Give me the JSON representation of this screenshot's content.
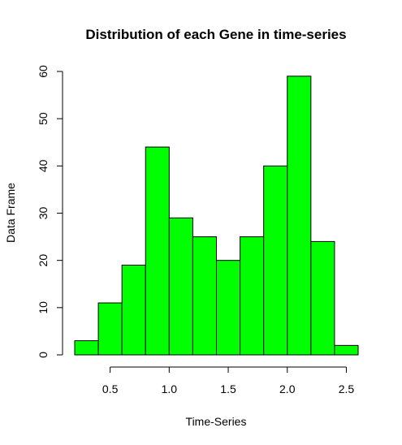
{
  "chart_data": {
    "type": "bar",
    "title": "Distribution of each Gene in time-series",
    "xlabel": "Time-Series",
    "ylabel": "Data Frame",
    "bin_edges": [
      0.2,
      0.4,
      0.6,
      0.8,
      1.0,
      1.2,
      1.4,
      1.6,
      1.8,
      2.0,
      2.2,
      2.4,
      2.6
    ],
    "values": [
      3,
      11,
      19,
      44,
      29,
      25,
      20,
      25,
      40,
      59,
      24,
      2
    ],
    "xlim": [
      0.2,
      2.6
    ],
    "ylim": [
      0,
      60
    ],
    "x_ticks": [
      0.5,
      1.0,
      1.5,
      2.0,
      2.5
    ],
    "x_tick_labels": [
      "0.5",
      "1.0",
      "1.5",
      "2.0",
      "2.5"
    ],
    "y_ticks": [
      0,
      10,
      20,
      30,
      40,
      50,
      60
    ],
    "y_tick_labels": [
      "0",
      "10",
      "20",
      "30",
      "40",
      "50",
      "60"
    ],
    "bar_color": "#00FF00",
    "bar_border_color": "#000000",
    "grid": false,
    "legend": "none"
  }
}
